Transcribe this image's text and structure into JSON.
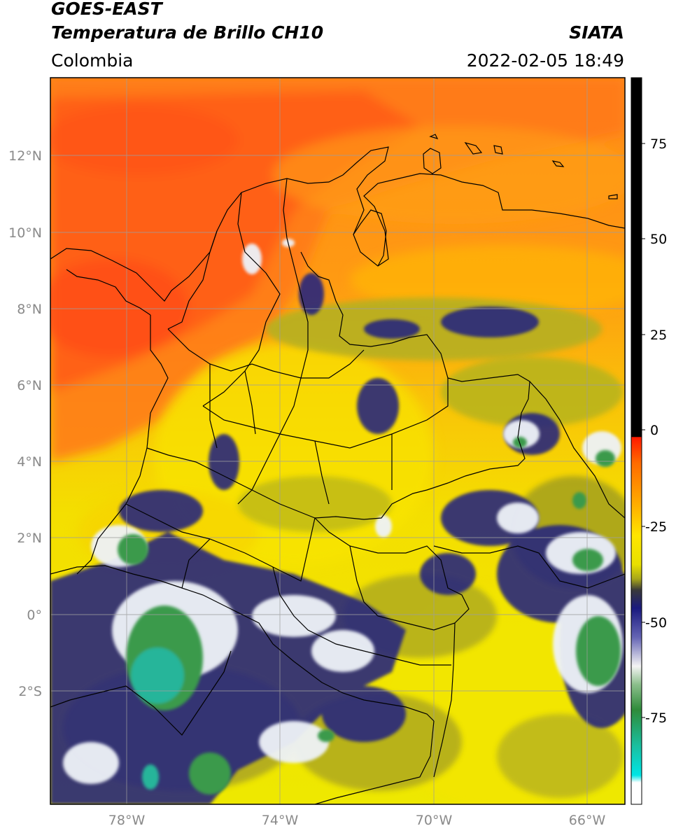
{
  "header": {
    "satellite": "GOES-EAST",
    "product": "Temperatura de Brillo CH10",
    "region": "Colombia",
    "agency": "SIATA",
    "datetime": "2022-02-05 18:49"
  },
  "axes": {
    "lat_ticks": [
      "12°N",
      "10°N",
      "8°N",
      "6°N",
      "4°N",
      "2°N",
      "0°",
      "2°S"
    ],
    "lon_ticks": [
      "78°W",
      "74°W",
      "70°W",
      "66°W"
    ]
  },
  "colorbar": {
    "tick_labels": [
      "75",
      "50",
      "25",
      "0",
      "-25",
      "-50",
      "-75"
    ],
    "range": [
      -95,
      90
    ],
    "colors": {
      "black": "#000000",
      "red": "#e8200e",
      "orange": "#ff8a00",
      "yellow": "#f2e800",
      "olive": "#a6a51a",
      "navy": "#1a1a7e",
      "white": "#f4f4f4",
      "green": "#2e8b3a",
      "teal": "#1abfa0",
      "cyan": "#00e5e5"
    }
  },
  "map_colors": {
    "ocean_warm": "#ff6a10",
    "warm_land": "#ff9a10",
    "mid": "#f7d800",
    "cold_low": "#c8c215",
    "cloud_navy": "#23237f",
    "cloud_white": "#eef2f8",
    "cloud_green": "#3a9a4c",
    "cloud_teal": "#26b59a",
    "gridline": "#9e9e9e",
    "border": "#000000"
  }
}
